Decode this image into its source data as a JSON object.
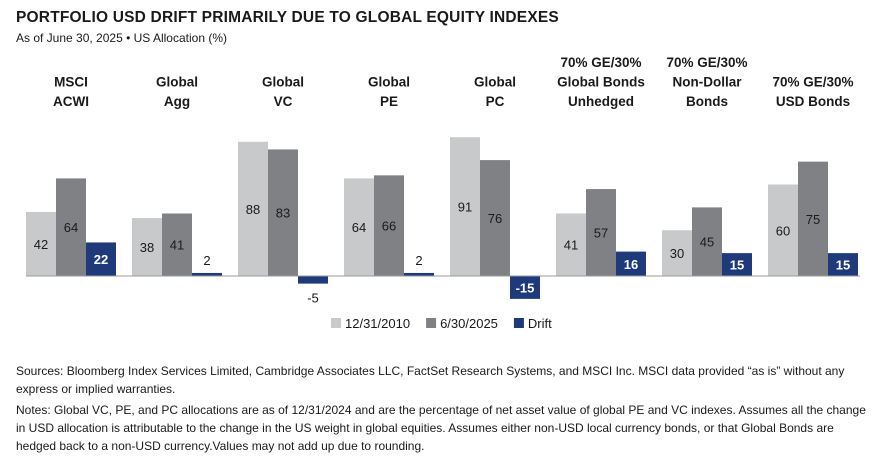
{
  "header": {
    "title": "PORTFOLIO USD DRIFT PRIMARILY DUE TO GLOBAL EQUITY INDEXES",
    "subtitle": "As of June 30, 2025 • US Allocation (%)"
  },
  "chart_data": {
    "type": "bar",
    "categories": [
      [
        "MSCI",
        "ACWI"
      ],
      [
        "Global",
        "Agg"
      ],
      [
        "Global",
        "VC"
      ],
      [
        "Global",
        "PE"
      ],
      [
        "Global",
        "PC"
      ],
      [
        "70% GE/30%",
        "Global Bonds",
        "Unhedged"
      ],
      [
        "70% GE/30%",
        "Non-Dollar",
        "Bonds"
      ],
      [
        "70% GE/30%",
        "USD Bonds"
      ]
    ],
    "series": [
      {
        "name": "12/31/2010",
        "color": "#c8c9cb",
        "values": [
          42,
          38,
          88,
          64,
          91,
          41,
          30,
          60
        ]
      },
      {
        "name": "6/30/2025",
        "color": "#808184",
        "values": [
          64,
          41,
          83,
          66,
          76,
          57,
          45,
          75
        ]
      },
      {
        "name": "Drift",
        "color": "#1e3a7b",
        "values": [
          22,
          2,
          -5,
          2,
          -15,
          16,
          15,
          15
        ]
      }
    ],
    "legend_position": "bottom",
    "grid": false
  },
  "footer": {
    "sources": "Sources: Bloomberg Index Services Limited, Cambridge Associates LLC, FactSet Research Systems, and MSCI Inc. MSCI data provided “as is” without any express or implied warranties.",
    "notes": "Notes: Global VC, PE, and PC allocations are as of 12/31/2024 and are the percentage of net asset value of global PE and VC indexes. Assumes all the change in USD allocation is attributable to the change in the US weight in global equities. Assumes either non-USD local currency bonds, or that Global Bonds are hedged back to a non-USD currency.Values may not add up due to rounding."
  }
}
